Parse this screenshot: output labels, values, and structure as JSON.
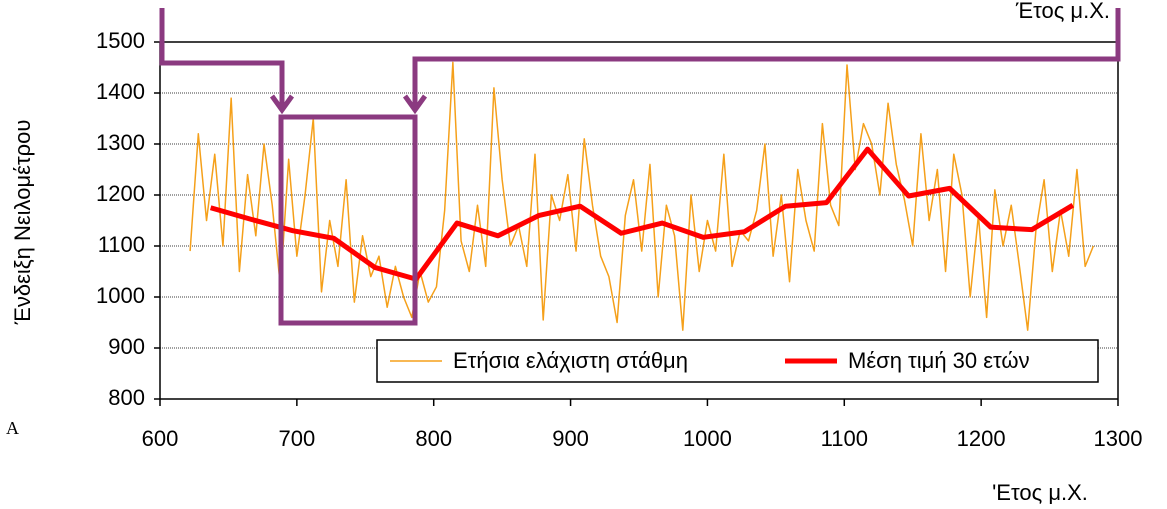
{
  "chart_data": {
    "type": "line",
    "x_label": "'Ετος μ.Χ.",
    "y_label": "Ένδειξη Νειλομέτρου",
    "annotations": [
      "Έτος μ.Χ.",
      "A"
    ],
    "xlim": [
      600,
      1300
    ],
    "xticks": [
      600,
      700,
      800,
      900,
      1000,
      1100,
      1200,
      1300
    ],
    "ylim": [
      800,
      1500
    ],
    "yticks": [
      800,
      900,
      1000,
      1100,
      1200,
      1300,
      1400,
      1500
    ],
    "grid": true,
    "legend": "bottom-right",
    "series": [
      {
        "name": "Ετήσια ελάχιστη στάθμη",
        "color": "#f5a01a",
        "x": [
          622,
          628,
          634,
          640,
          646,
          652,
          658,
          664,
          670,
          676,
          682,
          688,
          694,
          700,
          706,
          712,
          718,
          724,
          730,
          736,
          742,
          748,
          754,
          760,
          766,
          772,
          778,
          784,
          790,
          796,
          802,
          808,
          814,
          820,
          826,
          832,
          838,
          844,
          850,
          856,
          862,
          868,
          874,
          880,
          886,
          892,
          898,
          904,
          910,
          916,
          922,
          928,
          934,
          940,
          946,
          952,
          958,
          964,
          970,
          976,
          982,
          988,
          994,
          1000,
          1006,
          1012,
          1018,
          1024,
          1030,
          1036,
          1042,
          1048,
          1054,
          1060,
          1066,
          1072,
          1078,
          1084,
          1090,
          1096,
          1102,
          1108,
          1114,
          1120,
          1126,
          1132,
          1138,
          1144,
          1150,
          1156,
          1162,
          1168,
          1174,
          1180,
          1186,
          1192,
          1198,
          1204,
          1210,
          1216,
          1222,
          1228,
          1234,
          1240,
          1246,
          1252,
          1258,
          1264,
          1270,
          1276,
          1282
        ],
        "values": [
          1090,
          1320,
          1150,
          1280,
          1100,
          1390,
          1050,
          1240,
          1120,
          1300,
          1180,
          1020,
          1270,
          1080,
          1200,
          1350,
          1010,
          1150,
          1060,
          1230,
          990,
          1120,
          1040,
          1080,
          980,
          1060,
          1000,
          960,
          1050,
          990,
          1020,
          1170,
          1460,
          1110,
          1050,
          1180,
          1060,
          1410,
          1230,
          1100,
          1140,
          1060,
          1280,
          955,
          1200,
          1150,
          1240,
          1090,
          1310,
          1180,
          1080,
          1040,
          950,
          1160,
          1230,
          1090,
          1260,
          1000,
          1180,
          1120,
          935,
          1200,
          1050,
          1150,
          1090,
          1280,
          1060,
          1130,
          1110,
          1170,
          1300,
          1080,
          1200,
          1030,
          1250,
          1150,
          1090,
          1340,
          1180,
          1140,
          1455,
          1250,
          1340,
          1300,
          1200,
          1380,
          1260,
          1190,
          1100,
          1320,
          1150,
          1250,
          1050,
          1280,
          1200,
          1000,
          1160,
          960,
          1210,
          1100,
          1180,
          1060,
          935,
          1130,
          1230,
          1050,
          1170,
          1080,
          1250,
          1060,
          1100
        ]
      },
      {
        "name": "Μέση τιμή 30 ετών",
        "color": "#ff0000",
        "x": [
          637,
          667,
          697,
          727,
          757,
          787,
          817,
          847,
          877,
          907,
          937,
          967,
          997,
          1027,
          1057,
          1087,
          1117,
          1147,
          1177,
          1207,
          1237,
          1267
        ],
        "values": [
          1175,
          1152,
          1130,
          1115,
          1058,
          1035,
          1145,
          1120,
          1160,
          1178,
          1125,
          1145,
          1117,
          1128,
          1178,
          1185,
          1290,
          1198,
          1213,
          1137,
          1132,
          1180
        ]
      }
    ]
  }
}
